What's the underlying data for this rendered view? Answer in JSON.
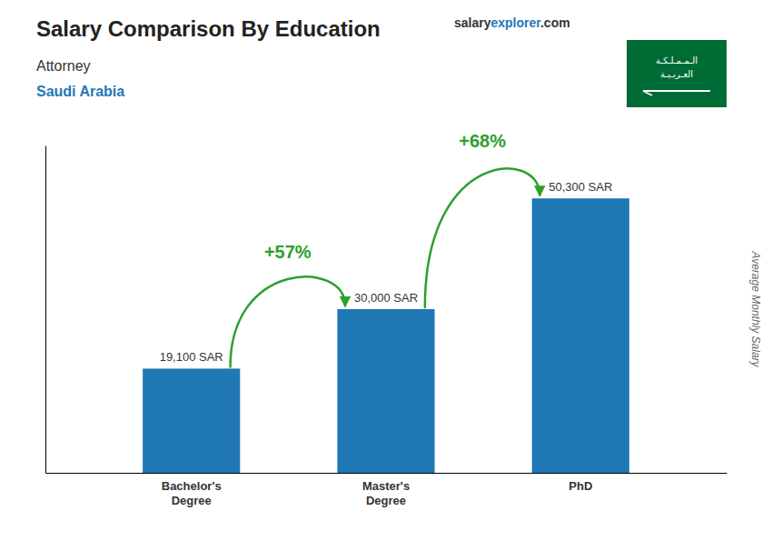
{
  "chart_data": {
    "type": "bar",
    "title": "Salary Comparison By Education",
    "subtitle": [
      "Attorney",
      "Saudi Arabia"
    ],
    "ylabel": "Average Monthly Salary",
    "categories": [
      "Bachelor's\nDegree",
      "Master's\nDegree",
      "PhD"
    ],
    "values": [
      19100,
      30000,
      50300
    ],
    "value_labels": [
      "19,100 SAR",
      "30,000 SAR",
      "50,300 SAR"
    ],
    "data_labels": true,
    "ylim": [
      0,
      60000
    ],
    "yticks": [],
    "tick_labels": "x",
    "grid": false,
    "annotations": [
      "+57%",
      "+68%"
    ],
    "brand": [
      "salary",
      "explorer",
      ".com"
    ],
    "flag_text": [
      "الـمـمـلـكـة",
      "العـربـيـة"
    ],
    "flag_color": "#006c35"
  }
}
